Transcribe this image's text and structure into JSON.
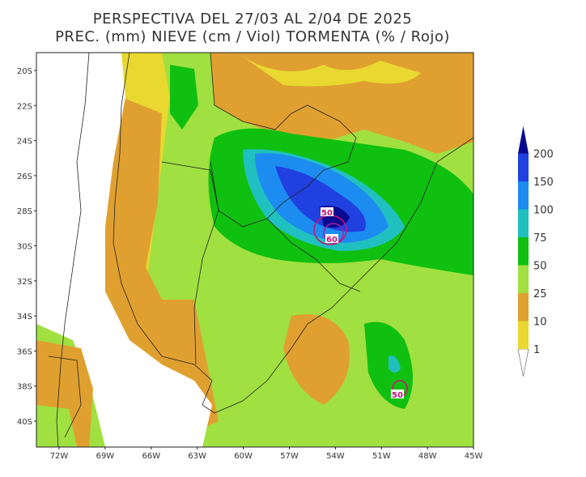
{
  "title": [
    "PERSPECTIVA DEL 27/03 AL 2/04 DE 2025",
    "PREC. (mm) NIEVE (cm / Viol) TORMENTA (% / Rojo)"
  ],
  "map": {
    "lat_labels": [
      "20S",
      "22S",
      "24S",
      "26S",
      "28S",
      "30S",
      "32S",
      "34S",
      "36S",
      "38S",
      "40S"
    ],
    "lon_labels": [
      "72W",
      "69W",
      "66W",
      "63W",
      "60W",
      "57W",
      "54W",
      "51W",
      "48W",
      "45W"
    ],
    "contour_labels": [
      "50",
      "60",
      "50"
    ]
  },
  "colorbar": {
    "levels": [
      1,
      10,
      25,
      50,
      75,
      100,
      150,
      200
    ],
    "colors": [
      "#ffffff",
      "#e8d830",
      "#e0a030",
      "#a0e040",
      "#10c010",
      "#20c0c0",
      "#1c8cf0",
      "#2040e0",
      "#0a0a90"
    ]
  }
}
